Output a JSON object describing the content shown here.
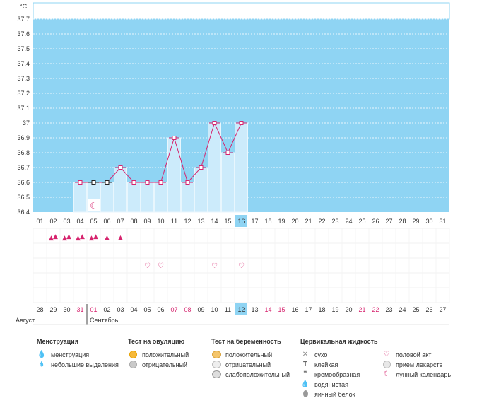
{
  "chart": {
    "unit_label": "°C",
    "y_ticks": [
      "36.4",
      "36.5",
      "36.6",
      "36.7",
      "36.8",
      "36.9",
      "37",
      "37.1",
      "37.2",
      "37.3",
      "37.4",
      "37.5",
      "37.6",
      "37.7"
    ],
    "cycle_days": [
      "01",
      "02",
      "03",
      "04",
      "05",
      "06",
      "07",
      "08",
      "09",
      "10",
      "11",
      "12",
      "13",
      "14",
      "15",
      "16",
      "17",
      "18",
      "19",
      "20",
      "21",
      "22",
      "23",
      "24",
      "25",
      "26",
      "27",
      "28",
      "29",
      "30",
      "31"
    ],
    "highlight_cycle_day": "16",
    "calendar_dates": [
      "28",
      "29",
      "30",
      "31",
      "01",
      "02",
      "03",
      "04",
      "05",
      "06",
      "07",
      "08",
      "09",
      "10",
      "11",
      "12",
      "13",
      "14",
      "15",
      "16",
      "17",
      "18",
      "19",
      "20",
      "21",
      "22",
      "23",
      "24",
      "25",
      "26",
      "27"
    ],
    "calendar_red_dates_index": [
      3,
      4,
      10,
      11,
      17,
      18,
      24,
      25
    ],
    "highlight_calendar_index": 15,
    "month_prev": "Август",
    "month_next": "Сентябрь",
    "colors": {
      "sky": "#8fd4f3",
      "bar": "#ccebfb",
      "bar_edge": "#e8f6fd",
      "line": "#d6246e",
      "red_text": "#d6246e",
      "highlight": "#8fd4f3"
    }
  },
  "chart_data": {
    "type": "line",
    "xlabel": "",
    "ylabel": "°C",
    "ylim": [
      36.4,
      37.7
    ],
    "x": [
      "01",
      "02",
      "03",
      "04",
      "05",
      "06",
      "07",
      "08",
      "09",
      "10",
      "11",
      "12",
      "13",
      "14",
      "15",
      "16"
    ],
    "series": [
      {
        "values": [
          null,
          null,
          null,
          36.6,
          36.6,
          36.6,
          36.7,
          36.6,
          36.6,
          36.6,
          36.9,
          36.6,
          36.7,
          37.0,
          36.8,
          37.0
        ]
      }
    ],
    "black_markers_days": [
      "05",
      "06"
    ]
  },
  "rows": {
    "menstruation": [
      {
        "day": "02",
        "kind": "heavy"
      },
      {
        "day": "03",
        "kind": "heavy"
      },
      {
        "day": "04",
        "kind": "heavy"
      },
      {
        "day": "05",
        "kind": "heavy"
      },
      {
        "day": "06",
        "kind": "light"
      },
      {
        "day": "07",
        "kind": "light"
      }
    ],
    "intercourse_days": [
      "09",
      "10",
      "14",
      "16"
    ],
    "moon_day": "05"
  },
  "legend": {
    "menstruation": {
      "title": "Менструация",
      "items": [
        "менструация",
        "небольшие выделения"
      ]
    },
    "ovulation": {
      "title": "Тест на овуляцию",
      "items": [
        "положительный",
        "отрицательный"
      ]
    },
    "pregnancy": {
      "title": "Тест на беременность",
      "items": [
        "положительный",
        "отрицательный",
        "слабоположительный"
      ]
    },
    "fluid": {
      "title": "Цервикальная жидкость",
      "items": [
        "сухо",
        "клейкая",
        "кремообразная",
        "водянистая",
        "яичный белок"
      ]
    },
    "other": {
      "items": [
        "половой акт",
        "прием лекарств",
        "лунный календарь"
      ]
    }
  }
}
